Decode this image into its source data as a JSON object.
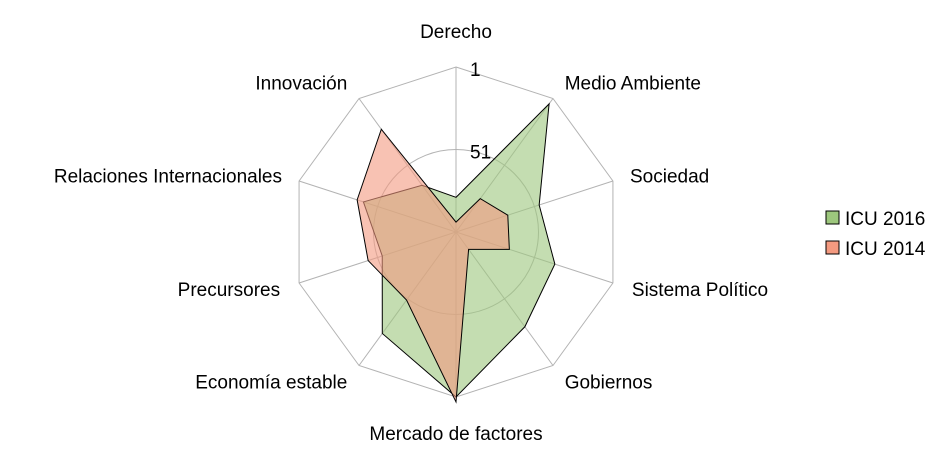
{
  "chart_data": {
    "type": "radar",
    "categories": [
      "Derecho",
      "Medio Ambiente",
      "Sociedad",
      "Sistema Político",
      "Gobiernos",
      "Mercado de factores",
      "Economía estable",
      "Precursores",
      "Relaciones Internacionales",
      "Innovación"
    ],
    "series": [
      {
        "name": "ICU 2016",
        "color": "#9dc77d",
        "values": [
          22,
          97,
          54,
          64,
          72,
          101,
          77,
          48,
          60,
          36
        ]
      },
      {
        "name": "ICU 2014",
        "color": "#f49a80",
        "values": [
          7,
          26,
          34,
          35,
          14,
          104,
          52,
          57,
          64,
          78
        ]
      }
    ],
    "tick_labels": [
      "1",
      "51"
    ],
    "scale": {
      "center": 1,
      "max": 101
    },
    "grid": true,
    "legend_position": "right"
  }
}
